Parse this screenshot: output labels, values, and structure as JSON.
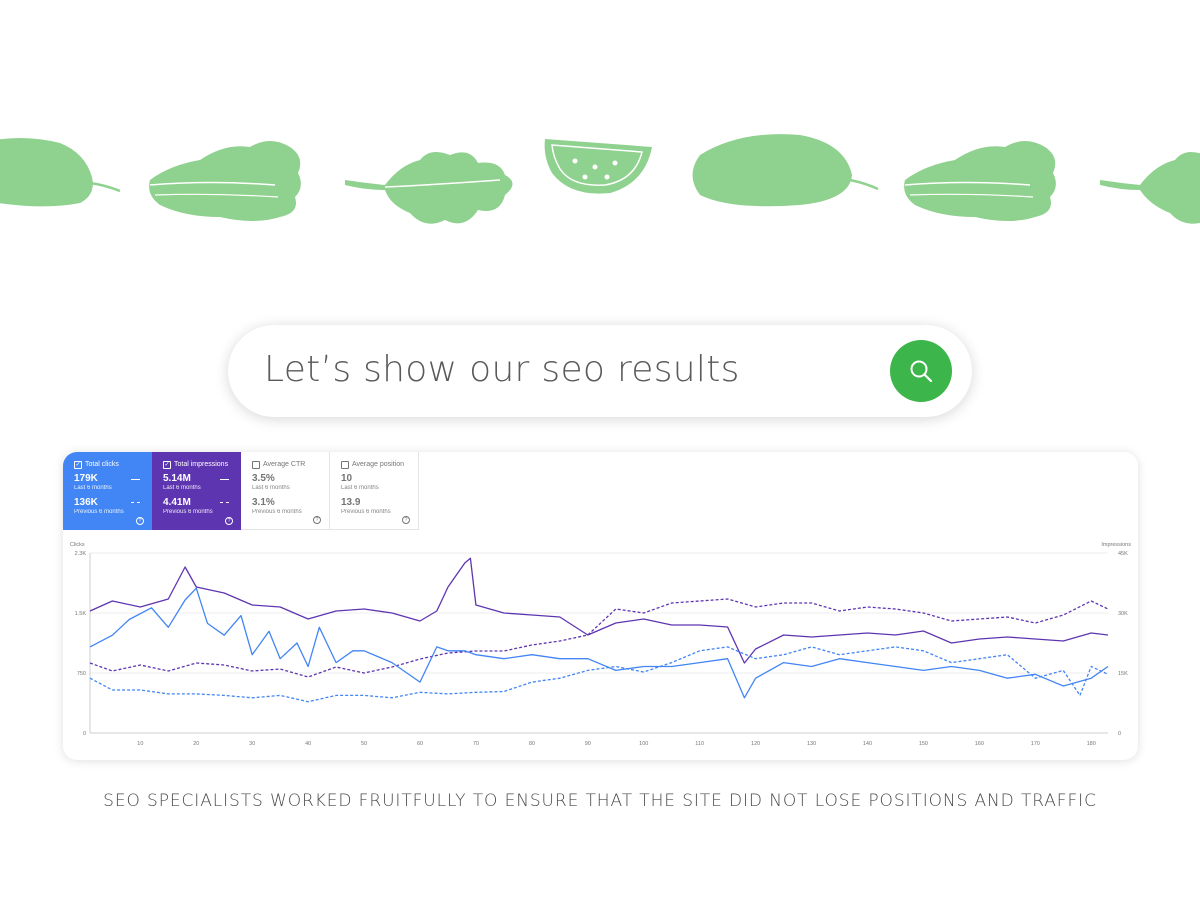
{
  "banner": {
    "icons": [
      "cucumber-icon",
      "lettuce-icon",
      "leaf-icon",
      "melon-slice-icon",
      "eggplant-icon",
      "lettuce-icon",
      "leaf-icon"
    ],
    "color": "#8fd18e"
  },
  "search": {
    "text": "Let’s show our seo results",
    "button_icon": "search-icon",
    "button_color": "#3cb54a"
  },
  "metrics": [
    {
      "label": "Total clicks",
      "checked": true,
      "color": "#4285f4",
      "value": "179K",
      "period": "Last 6 months",
      "value2": "136K",
      "period2": "Previous 6 months"
    },
    {
      "label": "Total impressions",
      "checked": true,
      "color": "#5e35b1",
      "value": "5.14M",
      "period": "Last 6 months",
      "value2": "4.41M",
      "period2": "Previous 6 months"
    },
    {
      "label": "Average CTR",
      "checked": false,
      "value": "3.5%",
      "period": "Last 6 months",
      "value2": "3.1%",
      "period2": "Previous 6 months"
    },
    {
      "label": "Average position",
      "checked": false,
      "value": "10",
      "period": "Last 6 months",
      "value2": "13.9",
      "period2": "Previous 6 months"
    }
  ],
  "chart_data": {
    "type": "line",
    "left_axis": {
      "label": "Clicks",
      "ticks": [
        "2.3K",
        "1.5K",
        "750",
        "0"
      ],
      "range": [
        0,
        2300
      ]
    },
    "right_axis": {
      "label": "Impressions",
      "ticks": [
        "45K",
        "30K",
        "15K",
        "0"
      ],
      "range": [
        0,
        45000
      ]
    },
    "x_ticks": [
      "10",
      "20",
      "30",
      "40",
      "50",
      "60",
      "70",
      "80",
      "90",
      "100",
      "110",
      "120",
      "130",
      "140",
      "150",
      "160",
      "170",
      "180"
    ],
    "x_range": [
      1,
      183
    ],
    "colors": {
      "clicks": "#4285f4",
      "impressions": "#5e35b1"
    },
    "series": [
      {
        "key": "impressions_current",
        "axis": "right",
        "color": "#5e35b1",
        "dashed": false,
        "x": [
          1,
          5,
          10,
          15,
          18,
          20,
          25,
          30,
          35,
          40,
          45,
          50,
          55,
          60,
          63,
          65,
          68,
          69,
          70,
          75,
          80,
          85,
          90,
          95,
          100,
          105,
          110,
          115,
          118,
          120,
          125,
          130,
          135,
          140,
          145,
          150,
          155,
          160,
          165,
          170,
          175,
          180,
          183
        ],
        "values": [
          30500,
          33000,
          31500,
          33500,
          41500,
          36500,
          35000,
          32000,
          31500,
          28500,
          30500,
          31000,
          30000,
          28000,
          30500,
          36500,
          42500,
          43700,
          32000,
          30000,
          29500,
          29000,
          24500,
          27500,
          28500,
          27000,
          27000,
          26500,
          17500,
          21000,
          24500,
          24000,
          24500,
          25000,
          24500,
          25500,
          22500,
          23500,
          24000,
          23500,
          23000,
          25000,
          24500
        ]
      },
      {
        "key": "impressions_previous",
        "axis": "right",
        "color": "#5e35b1",
        "dashed": true,
        "x": [
          1,
          5,
          10,
          15,
          20,
          25,
          30,
          35,
          40,
          45,
          50,
          55,
          60,
          65,
          70,
          75,
          80,
          85,
          90,
          95,
          100,
          105,
          110,
          115,
          120,
          125,
          130,
          135,
          140,
          145,
          150,
          155,
          160,
          165,
          170,
          175,
          180,
          183
        ],
        "values": [
          17500,
          15500,
          17000,
          15500,
          17500,
          17000,
          15500,
          16000,
          14000,
          16500,
          15000,
          16500,
          18500,
          20000,
          20500,
          20500,
          22000,
          23000,
          24500,
          31000,
          30000,
          32500,
          33000,
          33500,
          31500,
          32500,
          32500,
          30500,
          31500,
          31000,
          30000,
          28000,
          28500,
          29000,
          27500,
          29500,
          33000,
          31000
        ]
      },
      {
        "key": "clicks_current",
        "axis": "left",
        "color": "#4285f4",
        "dashed": false,
        "x": [
          1,
          5,
          8,
          12,
          15,
          18,
          20,
          22,
          25,
          28,
          30,
          33,
          35,
          38,
          40,
          42,
          45,
          48,
          50,
          55,
          60,
          63,
          65,
          68,
          70,
          75,
          80,
          85,
          90,
          95,
          100,
          105,
          110,
          115,
          118,
          120,
          125,
          130,
          135,
          140,
          145,
          150,
          155,
          160,
          165,
          170,
          175,
          180,
          183
        ],
        "values": [
          1100,
          1250,
          1450,
          1600,
          1350,
          1700,
          1850,
          1400,
          1250,
          1500,
          1000,
          1300,
          950,
          1150,
          850,
          1350,
          900,
          1050,
          1050,
          900,
          650,
          1100,
          1050,
          1050,
          1000,
          950,
          1000,
          950,
          950,
          800,
          850,
          850,
          900,
          950,
          450,
          700,
          900,
          850,
          950,
          900,
          850,
          800,
          850,
          800,
          700,
          750,
          600,
          700,
          850
        ]
      },
      {
        "key": "clicks_previous",
        "axis": "left",
        "color": "#4285f4",
        "dashed": true,
        "x": [
          1,
          5,
          10,
          15,
          20,
          25,
          30,
          35,
          40,
          45,
          50,
          55,
          60,
          65,
          70,
          75,
          80,
          85,
          90,
          95,
          100,
          105,
          110,
          115,
          120,
          125,
          130,
          135,
          140,
          145,
          150,
          155,
          160,
          165,
          170,
          175,
          178,
          180,
          183
        ],
        "values": [
          700,
          550,
          550,
          500,
          500,
          480,
          450,
          480,
          400,
          480,
          480,
          450,
          520,
          500,
          520,
          530,
          650,
          700,
          800,
          850,
          780,
          900,
          1050,
          1100,
          950,
          1000,
          1100,
          1000,
          1050,
          1100,
          1050,
          900,
          950,
          1000,
          700,
          800,
          480,
          850,
          750
        ]
      }
    ]
  },
  "caption": "SEO SPECIALISTS WORKED FRUITFULLY TO ENSURE THAT THE SITE DID NOT LOSE POSITIONS AND TRAFFIC"
}
